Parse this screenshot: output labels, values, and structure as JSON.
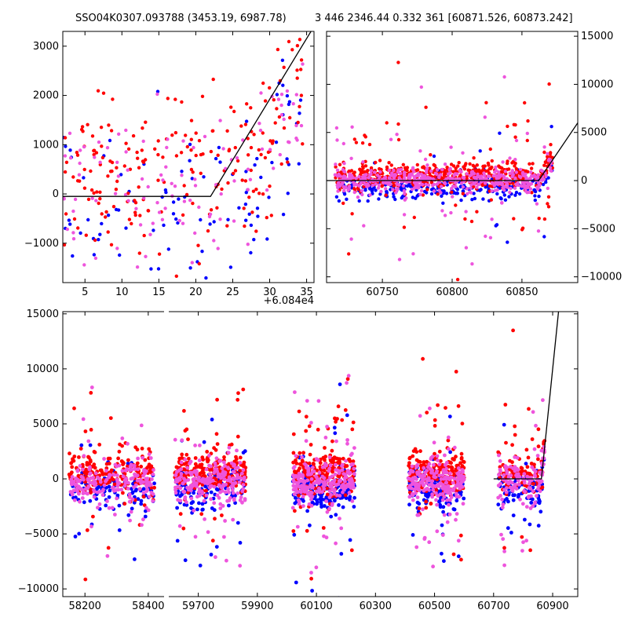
{
  "titles": {
    "left": "SSO04K0307.093788 (3453.19, 6987.78)",
    "right": "3 446 2346.44 0.332 361 [60871.526, 60873.242]"
  },
  "colors": {
    "red": "#ff0000",
    "blue": "#0000ff",
    "pink": "#ee55dd",
    "line": "#000000"
  },
  "chart_data": [
    {
      "id": "zoom",
      "type": "scatter",
      "xlim": [
        60842,
        60876
      ],
      "ylim": [
        -1800,
        3300
      ],
      "xticks": [
        5,
        10,
        15,
        20,
        25,
        30,
        35
      ],
      "xtick_labels": [
        "5",
        "10",
        "15",
        "20",
        "25",
        "30",
        "35"
      ],
      "x_offset_label": "+6.084e4",
      "yticks": [
        -1000,
        0,
        1000,
        2000,
        3000
      ],
      "ytick_labels": [
        "−1000",
        "0",
        "1000",
        "2000",
        "3000"
      ],
      "fit_line": {
        "x": [
          60842,
          60862,
          60876
        ],
        "y": [
          -50,
          -50,
          3400
        ]
      }
    },
    {
      "id": "recent",
      "type": "scatter",
      "xlim": [
        60710,
        60890
      ],
      "ylim": [
        -10600,
        15500
      ],
      "xticks": [
        60750,
        60800,
        60850
      ],
      "xtick_labels": [
        "60750",
        "60800",
        "60850"
      ],
      "yticks": [
        -10000,
        -5000,
        0,
        5000,
        10000,
        15000
      ],
      "ytick_labels": [
        "−10000",
        "−5000",
        "0",
        "5000",
        "10000",
        "15000"
      ],
      "y_axis_side": "right",
      "fit_line": {
        "x": [
          60710,
          60862,
          60890
        ],
        "y": [
          0,
          0,
          6000
        ]
      }
    },
    {
      "id": "full",
      "type": "scatter",
      "broken_x_axis": true,
      "ylim": [
        -10700,
        15200
      ],
      "yticks": [
        -10000,
        -5000,
        0,
        5000,
        10000,
        15000
      ],
      "ytick_labels": [
        "−10000",
        "−5000",
        "0",
        "5000",
        "10000",
        "15000"
      ],
      "segments": [
        {
          "xlim": [
            58130,
            58450
          ],
          "xticks": [
            58200,
            58400
          ],
          "xtick_labels": [
            "58200",
            "58400"
          ]
        },
        {
          "xlim": [
            59600,
            60985
          ],
          "xticks": [
            59700,
            59900,
            60100,
            60300,
            60500,
            60700,
            60900
          ],
          "xtick_labels": [
            "59700",
            "59900",
            "60100",
            "60300",
            "60500",
            "60700",
            "60900"
          ]
        }
      ],
      "clusters": [
        {
          "xrange": [
            58150,
            58420
          ],
          "n": 520
        },
        {
          "xrange": [
            59620,
            59860
          ],
          "n": 560
        },
        {
          "xrange": [
            60020,
            60230
          ],
          "n": 600
        },
        {
          "xrange": [
            60410,
            60600
          ],
          "n": 560
        },
        {
          "xrange": [
            60715,
            60873
          ],
          "n": 300
        }
      ],
      "fit_line": {
        "x": [
          60700,
          60862,
          60920
        ],
        "y": [
          0,
          0,
          15200
        ]
      }
    }
  ]
}
